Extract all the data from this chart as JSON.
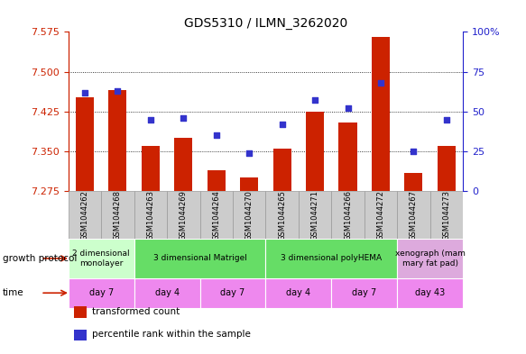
{
  "title": "GDS5310 / ILMN_3262020",
  "samples": [
    "GSM1044262",
    "GSM1044268",
    "GSM1044263",
    "GSM1044269",
    "GSM1044264",
    "GSM1044270",
    "GSM1044265",
    "GSM1044271",
    "GSM1044266",
    "GSM1044272",
    "GSM1044267",
    "GSM1044273"
  ],
  "transformed_count": [
    7.452,
    7.466,
    7.36,
    7.375,
    7.315,
    7.3,
    7.355,
    7.425,
    7.405,
    7.565,
    7.31,
    7.36
  ],
  "percentile_rank": [
    62,
    63,
    45,
    46,
    35,
    24,
    42,
    57,
    52,
    68,
    25,
    45
  ],
  "ylim": [
    7.275,
    7.575
  ],
  "ylim_right": [
    0,
    100
  ],
  "yticks_left": [
    7.275,
    7.35,
    7.425,
    7.5,
    7.575
  ],
  "yticks_right": [
    0,
    25,
    50,
    75,
    100
  ],
  "bar_color": "#cc2200",
  "dot_color": "#3333cc",
  "bar_bottom": 7.275,
  "growth_protocol_groups": [
    {
      "label": "2 dimensional\nmonolayer",
      "start": 0,
      "end": 2,
      "color": "#ccffcc"
    },
    {
      "label": "3 dimensional Matrigel",
      "start": 2,
      "end": 6,
      "color": "#66dd66"
    },
    {
      "label": "3 dimensional polyHEMA",
      "start": 6,
      "end": 10,
      "color": "#66dd66"
    },
    {
      "label": "xenograph (mam\nmary fat pad)",
      "start": 10,
      "end": 12,
      "color": "#ddaadd"
    }
  ],
  "time_groups": [
    {
      "label": "day 7",
      "start": 0,
      "end": 2
    },
    {
      "label": "day 4",
      "start": 2,
      "end": 4
    },
    {
      "label": "day 7",
      "start": 4,
      "end": 6
    },
    {
      "label": "day 4",
      "start": 6,
      "end": 8
    },
    {
      "label": "day 7",
      "start": 8,
      "end": 10
    },
    {
      "label": "day 43",
      "start": 10,
      "end": 12
    }
  ],
  "time_color": "#ee88ee",
  "left_axis_color": "#cc2200",
  "right_axis_color": "#2222cc",
  "legend_items": [
    {
      "label": "transformed count",
      "color": "#cc2200"
    },
    {
      "label": "percentile rank within the sample",
      "color": "#3333cc"
    }
  ],
  "growth_protocol_label": "growth protocol",
  "time_label": "time",
  "grid_yticks": [
    7.35,
    7.425,
    7.5
  ],
  "sample_bg_color": "#cccccc",
  "sample_cell_edge": "#999999"
}
